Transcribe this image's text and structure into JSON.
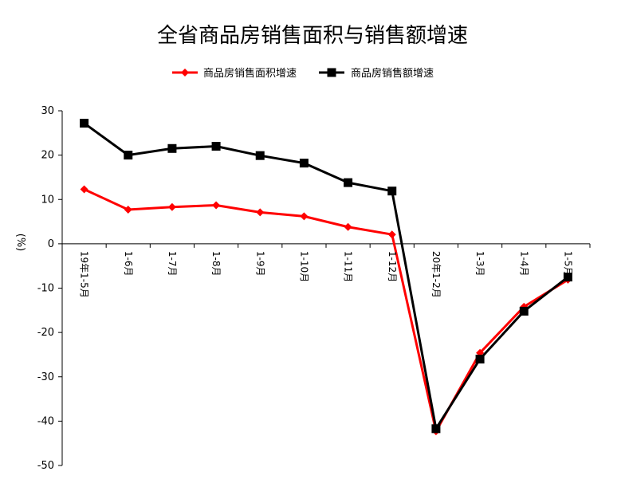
{
  "chart_data": {
    "type": "line",
    "title": "全省商品房销售面积与销售额增速",
    "ylabel": "(%)",
    "xlabel": "",
    "ylim": [
      -50,
      30
    ],
    "yticks": [
      30,
      20,
      10,
      0,
      -10,
      -20,
      -30,
      -40,
      -50
    ],
    "grid": false,
    "legend_position": "top",
    "categories": [
      "19年1-5月",
      "1-6月",
      "1-7月",
      "1-8月",
      "1-9月",
      "1-10月",
      "1-11月",
      "1-12月",
      "20年1-2月",
      "1-3月",
      "1-4月",
      "1-5月"
    ],
    "series": [
      {
        "name": "商品房销售面积增速",
        "color": "#ff0000",
        "marker": "diamond",
        "values": [
          12.3,
          7.7,
          8.3,
          8.7,
          7.1,
          6.2,
          3.8,
          2.1,
          -42.3,
          -24.6,
          -14.2,
          -8.1
        ]
      },
      {
        "name": "商品房销售额增速",
        "color": "#000000",
        "marker": "square",
        "values": [
          27.2,
          20.0,
          21.5,
          22.0,
          19.9,
          18.2,
          13.8,
          11.9,
          -41.7,
          -26.0,
          -15.2,
          -7.5
        ]
      }
    ]
  }
}
